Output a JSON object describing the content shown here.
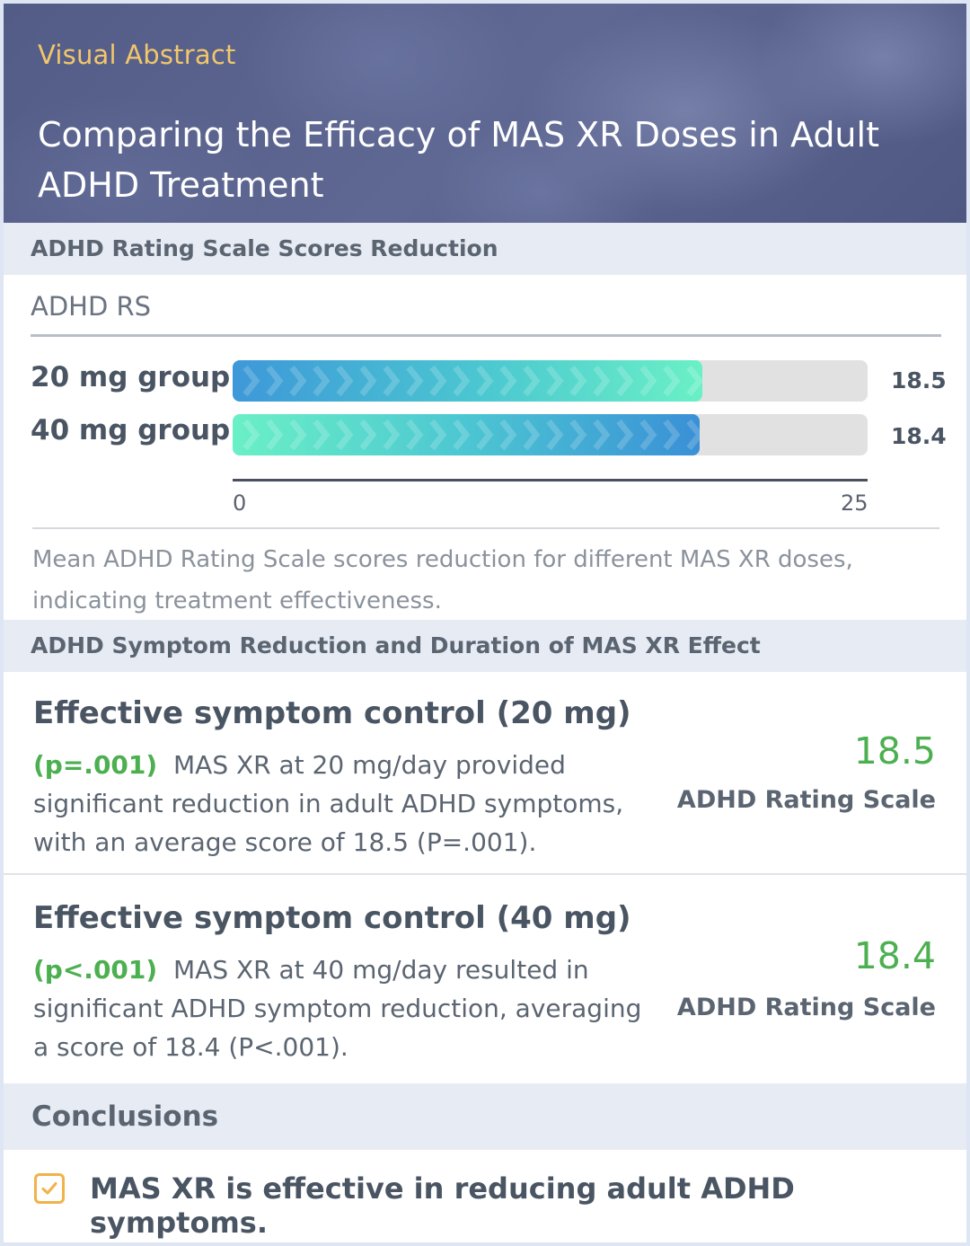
{
  "header": {
    "eyebrow": "Visual Abstract",
    "title": "Comparing the Efficacy of MAS XR Doses in Adult ADHD Treatment"
  },
  "section_chart": {
    "heading": "ADHD Rating Scale Scores Reduction",
    "chart_label": "ADHD RS",
    "caption": "Mean ADHD Rating Scale scores reduction for different MAS XR doses, indicating treatment effectiveness."
  },
  "chart_data": {
    "type": "bar",
    "orientation": "horizontal",
    "categories": [
      "20 mg group",
      "40 mg group"
    ],
    "values": [
      18.5,
      18.4
    ],
    "value_labels": [
      "18.5",
      "18.4"
    ],
    "xlim": [
      0,
      25
    ],
    "ticks": [
      "0",
      "25"
    ],
    "colors": [
      "#3d98d8",
      "#6af0c6"
    ]
  },
  "section_findings": {
    "heading": "ADHD Symptom Reduction and Duration of MAS XR Effect",
    "items": [
      {
        "title": "Effective symptom control (20 mg)",
        "pvalue": "(p=.001)",
        "body": "MAS XR at 20 mg/day provided significant reduction in adult ADHD symptoms, with an average score of 18.5 (P=.001).",
        "value": "18.5",
        "unit": "ADHD Rating Scale"
      },
      {
        "title": "Effective symptom control (40 mg)",
        "pvalue": "(p<.001)",
        "body": "MAS XR at 40 mg/day resulted in significant ADHD symptom reduction, averaging a score of 18.4 (P<.001).",
        "value": "18.4",
        "unit": "ADHD Rating Scale"
      }
    ]
  },
  "conclusions": {
    "heading": "Conclusions",
    "items": [
      "MAS XR is effective in reducing adult ADHD symptoms."
    ],
    "icon": "checkbox-icon"
  }
}
